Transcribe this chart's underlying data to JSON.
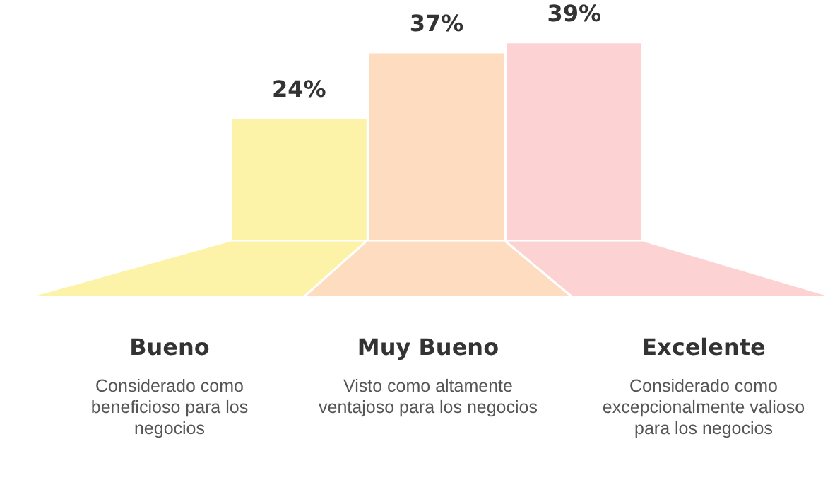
{
  "chart_data": {
    "type": "bar",
    "categories": [
      "Bueno",
      "Muy Bueno",
      "Excelente"
    ],
    "values": [
      24,
      37,
      39
    ],
    "colors": [
      "#fcf3a8",
      "#fddcbf",
      "#fdd2d2"
    ],
    "data_labels": true,
    "value_labels": [
      "24%",
      "37%",
      "39%"
    ],
    "annotations": [
      "Considerado como beneficioso para los negocios",
      "Visto como altamente ventajoso para los negocios",
      "Considerado como excepcionalmente valioso para los negocios"
    ]
  }
}
